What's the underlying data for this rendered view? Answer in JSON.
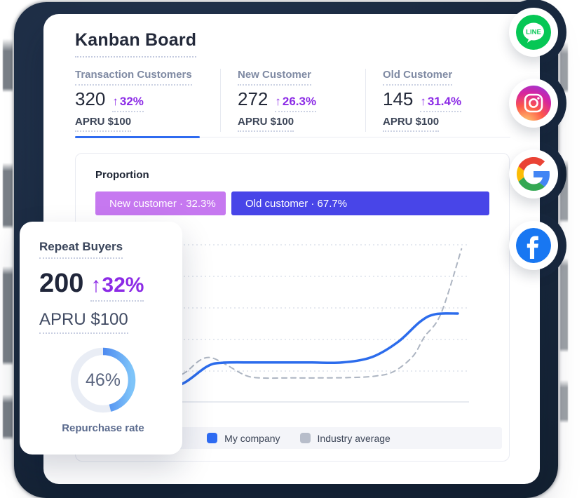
{
  "header": {
    "title": "Kanban Board"
  },
  "stats": [
    {
      "label": "Transaction Customers",
      "value": "320",
      "delta_arrow": "↑",
      "delta": "32%",
      "apru": "APRU $100",
      "active": true
    },
    {
      "label": "New Customer",
      "value": "272",
      "delta_arrow": "↑",
      "delta": "26.3%",
      "apru": "APRU $100",
      "active": false
    },
    {
      "label": "Old Customer",
      "value": "145",
      "delta_arrow": "↑",
      "delta": "31.4%",
      "apru": "APRU $100",
      "active": false
    }
  ],
  "proportion": {
    "title": "Proportion",
    "segments": [
      {
        "label": "New customer · 32.3%",
        "value": 32.3,
        "color": "#c678f0"
      },
      {
        "label": "Old customer · 67.7%",
        "value": 67.7,
        "color": "#4845e8"
      }
    ]
  },
  "chart_data": {
    "type": "line",
    "title": "",
    "x_axis": {
      "label": "",
      "ticks": []
    },
    "y_axis": {
      "label": "",
      "ticks": [],
      "gridlines": 5,
      "gridline_style": "dotted"
    },
    "legend_position": "bottom",
    "series": [
      {
        "name": "My company",
        "color": "#2c6cec",
        "style": "solid",
        "points": [
          [
            8,
            0.08
          ],
          [
            18,
            0.32
          ],
          [
            24,
            0.62
          ],
          [
            30,
            1.13
          ],
          [
            34,
            1.24
          ],
          [
            42,
            1.25
          ],
          [
            50,
            1.25
          ],
          [
            58,
            1.25
          ],
          [
            66,
            1.25
          ],
          [
            74,
            1.42
          ],
          [
            81,
            1.9
          ],
          [
            87,
            2.55
          ],
          [
            91,
            2.78
          ],
          [
            97,
            2.8
          ]
        ]
      },
      {
        "name": "Industry average",
        "color": "#adb5c2",
        "style": "dashed",
        "points": [
          [
            12,
            0.35
          ],
          [
            20,
            0.72
          ],
          [
            24,
            0.93
          ],
          [
            28,
            1.32
          ],
          [
            31,
            1.4
          ],
          [
            35,
            1.18
          ],
          [
            40,
            0.85
          ],
          [
            44,
            0.76
          ],
          [
            52,
            0.76
          ],
          [
            60,
            0.76
          ],
          [
            68,
            0.77
          ],
          [
            75,
            0.82
          ],
          [
            80,
            0.97
          ],
          [
            85,
            1.45
          ],
          [
            88,
            2.05
          ],
          [
            92.5,
            2.8
          ],
          [
            98,
            4.85
          ]
        ]
      }
    ],
    "note": "x = percent of plot width; y = gridline units above baseline (axes unlabeled in UI)"
  },
  "legend": [
    {
      "label": "My company",
      "color": "#2e6bf2"
    },
    {
      "label": "Industry average",
      "color": "#b7bdca"
    }
  ],
  "repeat_card": {
    "title": "Repeat Buyers",
    "value": "200",
    "delta_arrow": "↑",
    "delta": "32%",
    "apru": "APRU $100",
    "donut": {
      "percent": 46,
      "label": "46%",
      "caption": "Repurchase rate",
      "track_color": "#e9edf5",
      "start_color": "#1e4fe6",
      "end_color": "#7ec4f9"
    }
  },
  "social": [
    {
      "name": "line",
      "label": "LINE",
      "color": "#06c755"
    },
    {
      "name": "instagram",
      "label": "Instagram"
    },
    {
      "name": "google",
      "label": "Google"
    },
    {
      "name": "facebook",
      "label": "Facebook",
      "color": "#1877f2"
    }
  ],
  "colors": {
    "accent_purple": "#8c2be6",
    "accent_blue": "#2f6bf0",
    "navy_bg": "#1a2a40"
  }
}
